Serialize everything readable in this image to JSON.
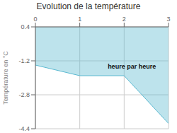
{
  "chart_data": {
    "type": "area",
    "title": "Evolution de la température",
    "y_label": "Température en °C",
    "x": [
      0,
      1.0,
      2.0,
      3.0
    ],
    "values": [
      -1.4,
      -1.9,
      -1.9,
      -4.15
    ],
    "color": "#5ab8d0",
    "xlim": [
      0,
      3
    ],
    "ylim": [
      -4.4,
      0.4
    ],
    "xticks": [
      0,
      1,
      2,
      3
    ],
    "yticks": [
      0.4,
      -1.2,
      -2.8,
      -4.4
    ],
    "grid": true,
    "annotations": [
      {
        "text": "heure par heure",
        "x": 1.55,
        "y": -1.45
      }
    ]
  }
}
